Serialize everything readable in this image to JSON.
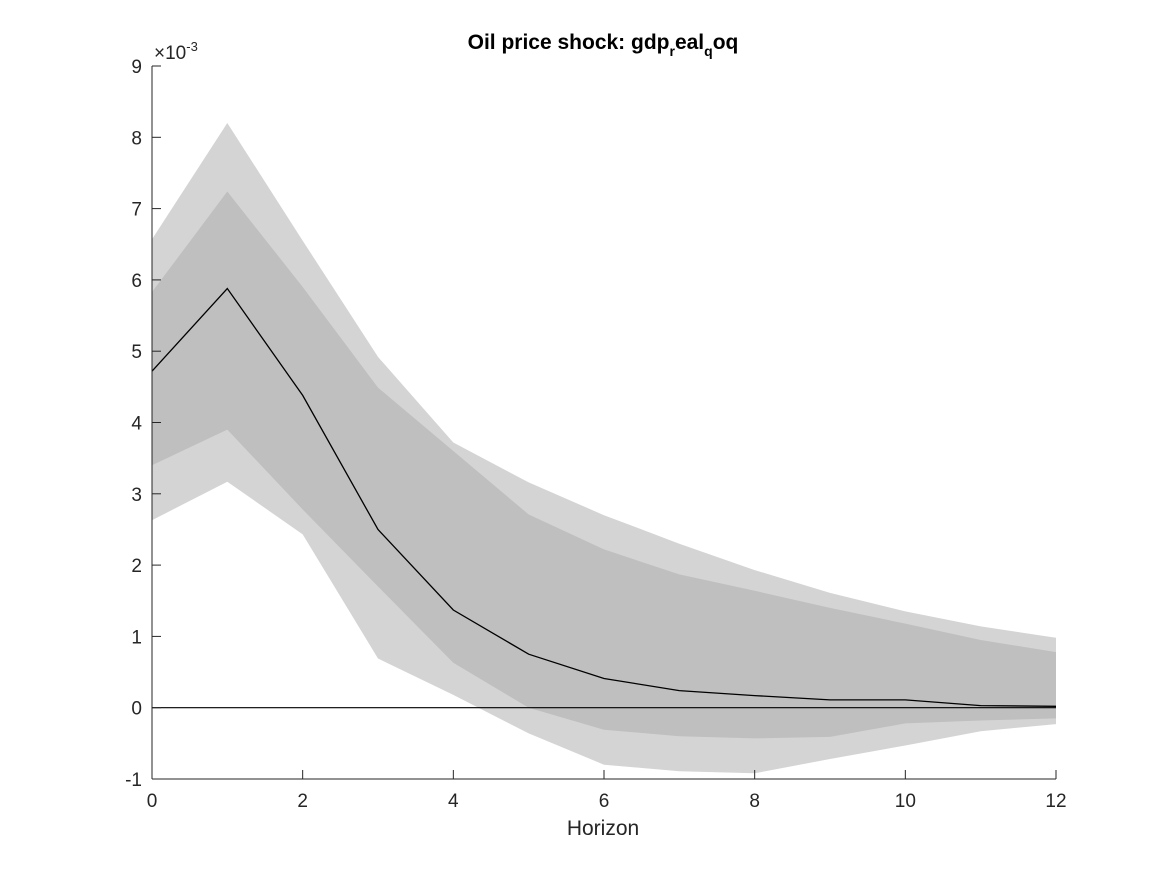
{
  "chart_data": {
    "type": "line",
    "title": "Oil price shock: gdp_real_qoq",
    "title_parts": {
      "p1": "Oil price shock: gdp",
      "s1": "r",
      "p2": "eal",
      "s2": "q",
      "p3": "oq"
    },
    "xlabel": "Horizon",
    "ylabel": "",
    "y_exponent_base": "×10",
    "y_exponent_power": "-3",
    "xlim": [
      0,
      12
    ],
    "ylim": [
      -1,
      9
    ],
    "xticks": [
      0,
      2,
      4,
      6,
      8,
      10,
      12
    ],
    "yticks": [
      -1,
      0,
      1,
      2,
      3,
      4,
      5,
      6,
      7,
      8,
      9
    ],
    "grid": false,
    "x": [
      0,
      1,
      2,
      3,
      4,
      5,
      6,
      7,
      8,
      9,
      10,
      11,
      12
    ],
    "series": [
      {
        "values": [
          4.72,
          5.88,
          4.38,
          2.5,
          1.37,
          0.75,
          0.41,
          0.24,
          0.17,
          0.11,
          0.11,
          0.03,
          0.02
        ]
      }
    ],
    "bands": [
      {
        "lower": [
          2.63,
          3.17,
          2.43,
          0.69,
          0.18,
          -0.36,
          -0.8,
          -0.89,
          -0.92,
          -0.72,
          -0.53,
          -0.33,
          -0.23
        ],
        "upper": [
          6.57,
          8.2,
          6.55,
          4.92,
          3.72,
          3.16,
          2.7,
          2.3,
          1.93,
          1.61,
          1.35,
          1.14,
          0.98
        ],
        "color": "#d4d4d4"
      },
      {
        "lower": [
          3.4,
          3.9,
          2.78,
          1.7,
          0.63,
          0.0,
          -0.31,
          -0.4,
          -0.43,
          -0.41,
          -0.22,
          -0.18,
          -0.15
        ],
        "upper": [
          5.83,
          7.24,
          5.9,
          4.49,
          3.6,
          2.71,
          2.22,
          1.87,
          1.64,
          1.4,
          1.18,
          0.95,
          0.78
        ],
        "color": "#bfbfbf"
      }
    ],
    "zero_line": 0,
    "line_color": "#000000"
  }
}
